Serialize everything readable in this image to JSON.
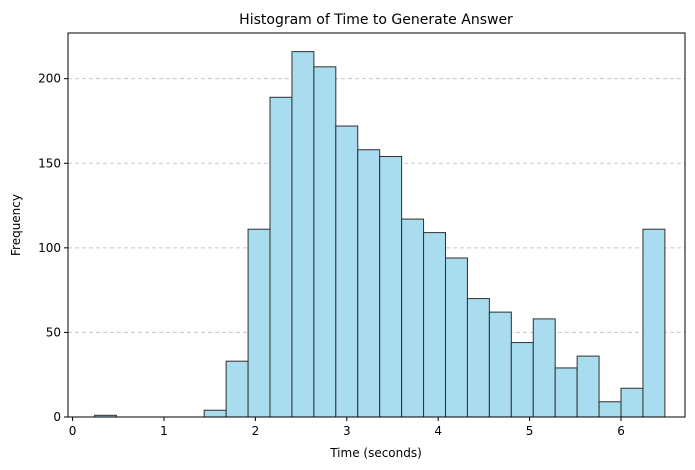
{
  "chart_data": {
    "type": "bar",
    "title": "Histogram of Time to Generate Answer",
    "xlabel": "Time (seconds)",
    "ylabel": "Frequency",
    "xlim": [
      -0.05,
      6.7
    ],
    "ylim": [
      0,
      227
    ],
    "xticks": [
      0,
      1,
      2,
      3,
      4,
      5,
      6
    ],
    "yticks": [
      0,
      50,
      100,
      150,
      200
    ],
    "grid": {
      "axis": "y",
      "style": "dashed",
      "color": "#c8c8c8"
    },
    "bar_color": "#a8dcee",
    "edge_color": "#2f2f2f",
    "bins": [
      {
        "x0": 0.24,
        "x1": 0.48,
        "count": 1
      },
      {
        "x0": 0.48,
        "x1": 0.72,
        "count": 0
      },
      {
        "x0": 0.72,
        "x1": 0.96,
        "count": 0
      },
      {
        "x0": 0.96,
        "x1": 1.2,
        "count": 0
      },
      {
        "x0": 1.2,
        "x1": 1.44,
        "count": 0
      },
      {
        "x0": 1.44,
        "x1": 1.68,
        "count": 4
      },
      {
        "x0": 1.68,
        "x1": 1.92,
        "count": 33
      },
      {
        "x0": 1.92,
        "x1": 2.16,
        "count": 111
      },
      {
        "x0": 2.16,
        "x1": 2.4,
        "count": 189
      },
      {
        "x0": 2.4,
        "x1": 2.64,
        "count": 216
      },
      {
        "x0": 2.64,
        "x1": 2.88,
        "count": 207
      },
      {
        "x0": 2.88,
        "x1": 3.12,
        "count": 172
      },
      {
        "x0": 3.12,
        "x1": 3.36,
        "count": 158
      },
      {
        "x0": 3.36,
        "x1": 3.6,
        "count": 154
      },
      {
        "x0": 3.6,
        "x1": 3.84,
        "count": 117
      },
      {
        "x0": 3.84,
        "x1": 4.08,
        "count": 109
      },
      {
        "x0": 4.08,
        "x1": 4.32,
        "count": 94
      },
      {
        "x0": 4.32,
        "x1": 4.56,
        "count": 70
      },
      {
        "x0": 4.56,
        "x1": 4.8,
        "count": 62
      },
      {
        "x0": 4.8,
        "x1": 5.04,
        "count": 44
      },
      {
        "x0": 5.04,
        "x1": 5.28,
        "count": 58
      },
      {
        "x0": 5.28,
        "x1": 5.52,
        "count": 29
      },
      {
        "x0": 5.52,
        "x1": 5.76,
        "count": 36
      },
      {
        "x0": 5.76,
        "x1": 6.0,
        "count": 9
      },
      {
        "x0": 6.0,
        "x1": 6.24,
        "count": 17
      },
      {
        "x0": 6.24,
        "x1": 6.48,
        "count": 111
      }
    ]
  }
}
